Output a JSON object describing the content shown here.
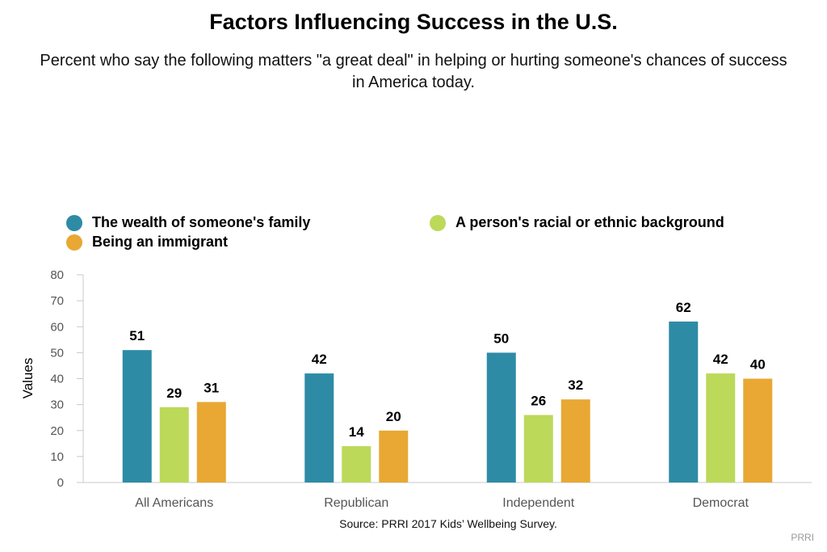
{
  "header": {
    "title": "Factors Influencing Success in the U.S.",
    "subtitle": "Percent who say the following matters \"a great deal\" in helping or hurting someone's chances of success in America today."
  },
  "footer": {
    "source": "Source: PRRI 2017 Kids’ Wellbeing Survey.",
    "credit": "PRRI"
  },
  "chart_data": {
    "type": "bar",
    "title": "Factors Influencing Success in the U.S.",
    "subtitle": "Percent who say the following matters \"a great deal\" in helping or hurting someone's chances of success in America today.",
    "xlabel": "",
    "ylabel": "Values",
    "ylim": [
      0,
      80
    ],
    "yticks": [
      0,
      10,
      20,
      30,
      40,
      50,
      60,
      70,
      80
    ],
    "grid": false,
    "legend_position": "top-left",
    "categories": [
      "All Americans",
      "Republican",
      "Independent",
      "Democrat"
    ],
    "series": [
      {
        "name": "The wealth of someone's family",
        "color": "#2e8ba6",
        "values": [
          51,
          42,
          50,
          62
        ]
      },
      {
        "name": "A person's racial or ethnic background",
        "color": "#bcd95a",
        "values": [
          29,
          14,
          26,
          42
        ]
      },
      {
        "name": "Being an immigrant",
        "color": "#e8a833",
        "values": [
          31,
          20,
          32,
          40
        ]
      }
    ]
  }
}
